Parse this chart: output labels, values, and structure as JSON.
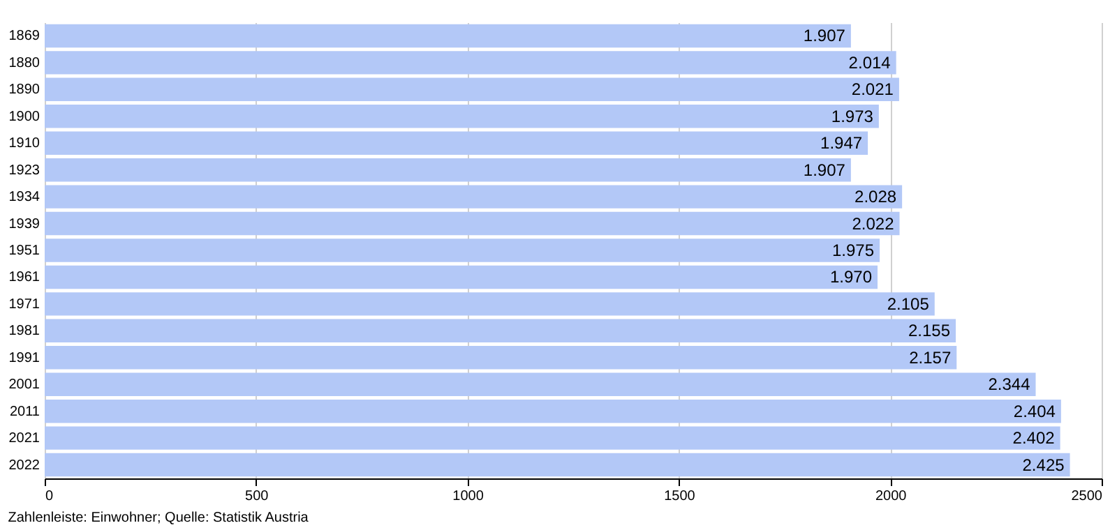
{
  "chart_data": {
    "type": "bar",
    "orientation": "horizontal",
    "categories": [
      "1869",
      "1880",
      "1890",
      "1900",
      "1910",
      "1923",
      "1934",
      "1939",
      "1951",
      "1961",
      "1971",
      "1981",
      "1991",
      "2001",
      "2011",
      "2021",
      "2022"
    ],
    "values": [
      1907,
      2014,
      2021,
      1973,
      1947,
      1907,
      2028,
      2022,
      1975,
      1970,
      2105,
      2155,
      2157,
      2344,
      2404,
      2402,
      2425
    ],
    "value_labels": [
      "1.907",
      "2.014",
      "2.021",
      "1.973",
      "1.947",
      "1.907",
      "2.028",
      "2.022",
      "1.975",
      "1.970",
      "2.105",
      "2.155",
      "2.157",
      "2.344",
      "2.404",
      "2.402",
      "2.425"
    ],
    "color": "#b3c8f7",
    "xlim": [
      0,
      2500
    ],
    "xticks": [
      0,
      500,
      1000,
      1500,
      2000,
      2500
    ],
    "grid": "x",
    "annotations": [
      "Zahlenleiste: Einwohner; Quelle: Statistik Austria"
    ]
  }
}
